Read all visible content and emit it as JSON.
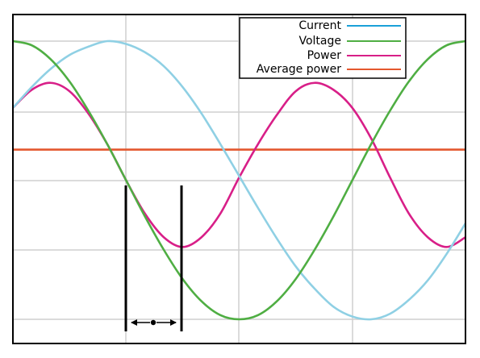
{
  "chart_data": {
    "type": "line",
    "title": "",
    "xlabel": "",
    "ylabel": "",
    "grid": true,
    "legend_position": "top-right",
    "xlim": [
      0,
      360
    ],
    "ylim": [
      -1,
      1
    ],
    "x": [
      0,
      15,
      30,
      45,
      60,
      75,
      90,
      105,
      120,
      135,
      150,
      165,
      180,
      195,
      210,
      225,
      240,
      255,
      270,
      285,
      300,
      315,
      330,
      345,
      360
    ],
    "series": [
      {
        "name": "Current",
        "color": "#8fd0e4",
        "values": [
          0.52,
          0.67,
          0.8,
          0.9,
          0.96,
          1.0,
          0.98,
          0.92,
          0.82,
          0.67,
          0.48,
          0.26,
          0.03,
          -0.2,
          -0.42,
          -0.62,
          -0.78,
          -0.91,
          -0.98,
          -1.0,
          -0.96,
          -0.86,
          -0.72,
          -0.53,
          -0.31
        ]
      },
      {
        "name": "Voltage",
        "color": "#4fae43",
        "values": [
          1.0,
          0.97,
          0.87,
          0.71,
          0.5,
          0.26,
          0.0,
          -0.26,
          -0.5,
          -0.71,
          -0.87,
          -0.97,
          -1.0,
          -0.97,
          -0.87,
          -0.71,
          -0.5,
          -0.26,
          0.0,
          0.26,
          0.5,
          0.71,
          0.87,
          0.97,
          1.0
        ]
      },
      {
        "name": "Power",
        "color": "#d81f88",
        "values": [
          0.52,
          0.65,
          0.7,
          0.64,
          0.48,
          0.26,
          0.0,
          -0.24,
          -0.41,
          -0.48,
          -0.41,
          -0.24,
          0.02,
          0.26,
          0.47,
          0.64,
          0.7,
          0.65,
          0.52,
          0.3,
          0.02,
          -0.24,
          -0.41,
          -0.48,
          -0.41
        ]
      },
      {
        "name": "Average power",
        "color": "#e4572e",
        "values": [
          0.22,
          0.22,
          0.22,
          0.22,
          0.22,
          0.22,
          0.22,
          0.22,
          0.22,
          0.22,
          0.22,
          0.22,
          0.22,
          0.22,
          0.22,
          0.22,
          0.22,
          0.22,
          0.22,
          0.22,
          0.22,
          0.22,
          0.22,
          0.22,
          0.22
        ]
      }
    ]
  },
  "legend": {
    "current": "Current",
    "voltage": "Voltage",
    "power": "Power",
    "average_power": "Average power"
  }
}
